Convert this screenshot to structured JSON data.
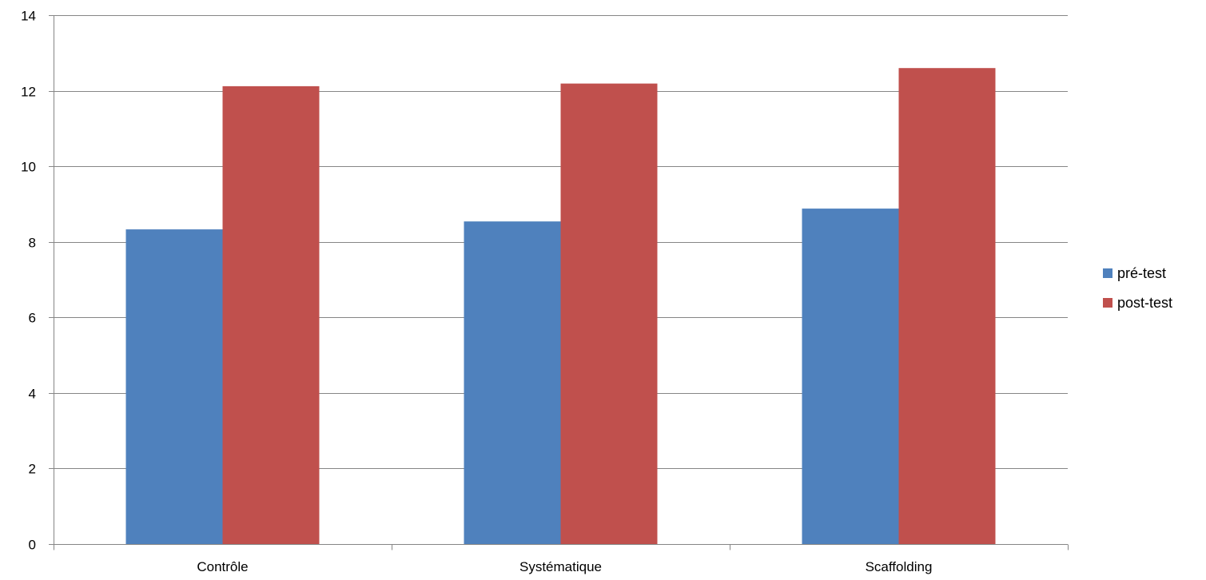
{
  "chart_data": {
    "type": "bar",
    "title": "",
    "xlabel": "",
    "ylabel": "",
    "categories": [
      "Contrôle",
      "Systématique",
      "Scaffolding"
    ],
    "series": [
      {
        "name": "pré-test",
        "values": [
          8.33,
          8.54,
          8.88
        ],
        "color": "#4F81BD"
      },
      {
        "name": "post-test",
        "values": [
          12.12,
          12.19,
          12.6
        ],
        "color": "#C0504D"
      }
    ],
    "ylim": [
      0,
      14
    ],
    "yticks": [
      0,
      2,
      4,
      6,
      8,
      10,
      12,
      14
    ],
    "grid": true,
    "legend_position": "right"
  }
}
